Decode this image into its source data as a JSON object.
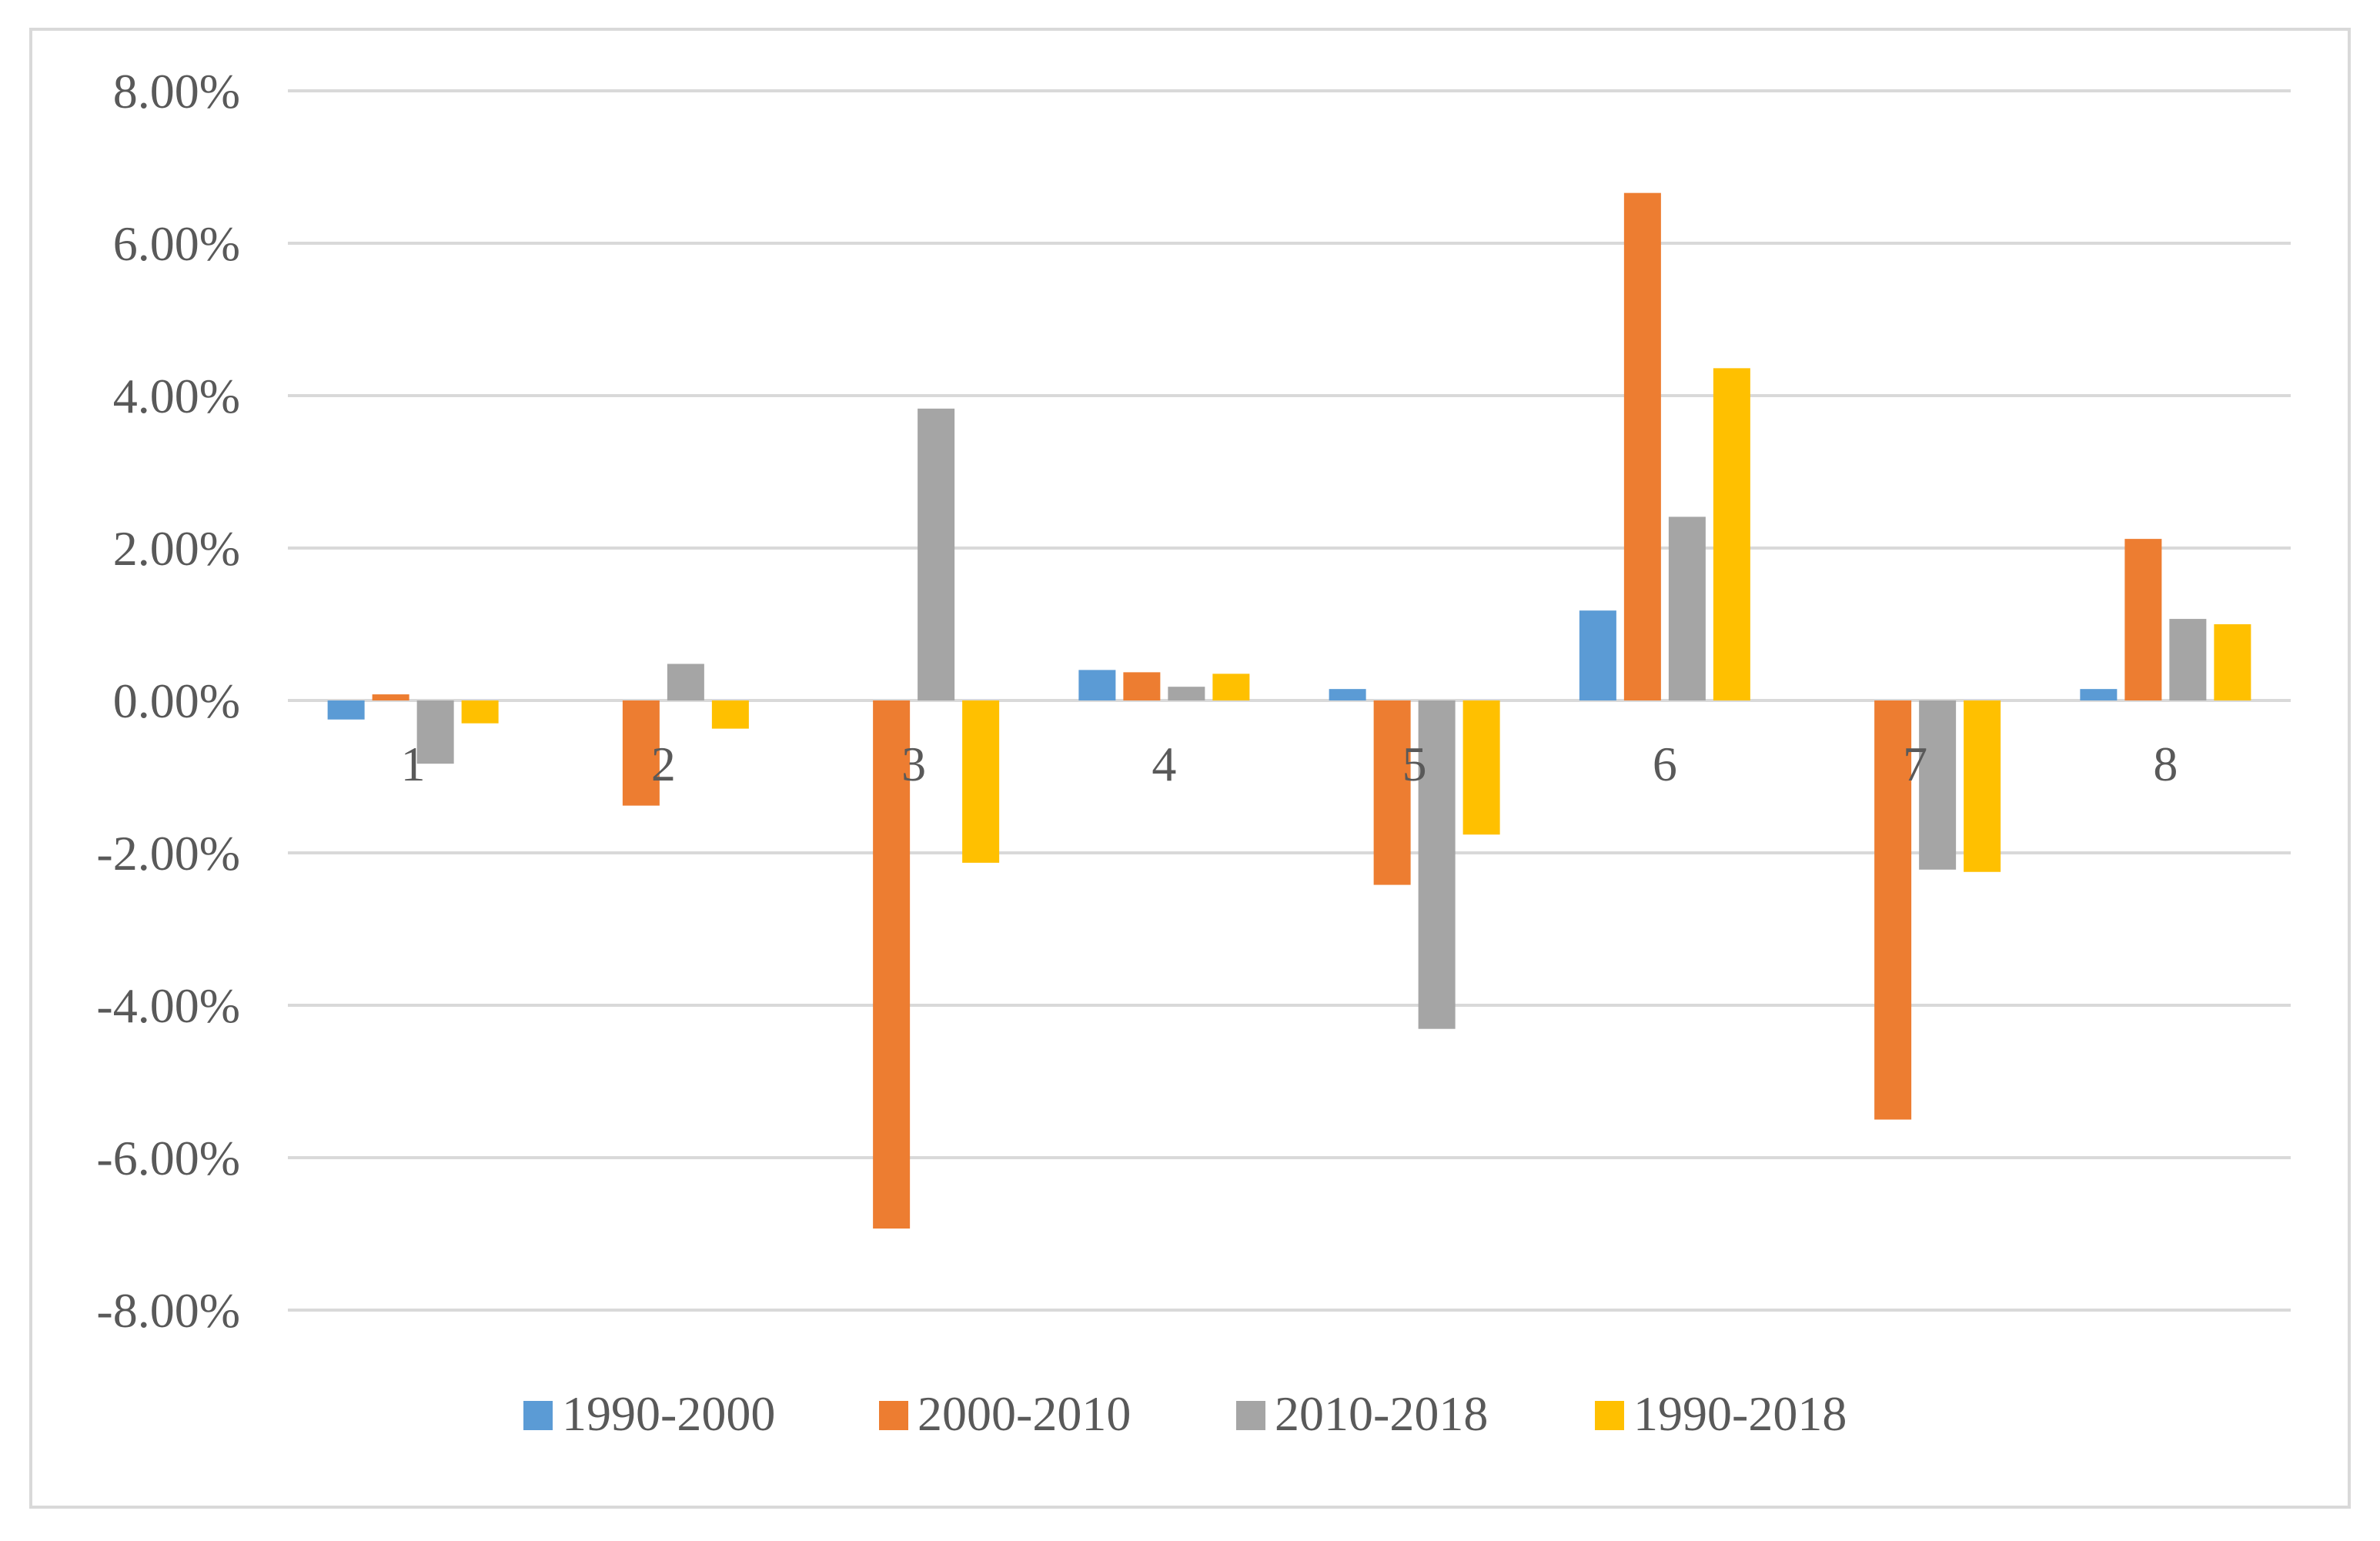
{
  "chart_data": {
    "type": "bar",
    "title": "",
    "xlabel": "",
    "ylabel": "",
    "categories": [
      "1",
      "2",
      "3",
      "4",
      "5",
      "6",
      "7",
      "8"
    ],
    "ylim": [
      -0.08,
      0.08
    ],
    "yticks": [
      0.08,
      0.06,
      0.04,
      0.02,
      0.0,
      -0.02,
      -0.04,
      -0.06,
      -0.08
    ],
    "ytick_labels": [
      "8.00%",
      "6.00%",
      "4.00%",
      "2.00%",
      "0.00%",
      "-2.00%",
      "-4.00%",
      "-6.00%",
      "-8.00%"
    ],
    "grid": true,
    "legend_position": "bottom",
    "series": [
      {
        "name": "1990-2000",
        "color": "#5b9bd5",
        "values": [
          -0.0025,
          0.0,
          0.0,
          0.004,
          0.0015,
          0.0118,
          0.0,
          0.0015
        ]
      },
      {
        "name": "2000-2010",
        "color": "#ed7d31",
        "values": [
          0.0008,
          -0.0138,
          -0.0693,
          0.0037,
          -0.0242,
          0.0666,
          -0.055,
          0.0212
        ]
      },
      {
        "name": "2010-2018",
        "color": "#a5a5a5",
        "values": [
          -0.0083,
          0.0048,
          0.0383,
          0.0018,
          -0.0431,
          0.0241,
          -0.0222,
          0.0107
        ]
      },
      {
        "name": "1990-2018",
        "color": "#ffc000",
        "values": [
          -0.003,
          -0.0037,
          -0.0213,
          0.0035,
          -0.0176,
          0.0436,
          -0.0225,
          0.01
        ]
      }
    ]
  }
}
